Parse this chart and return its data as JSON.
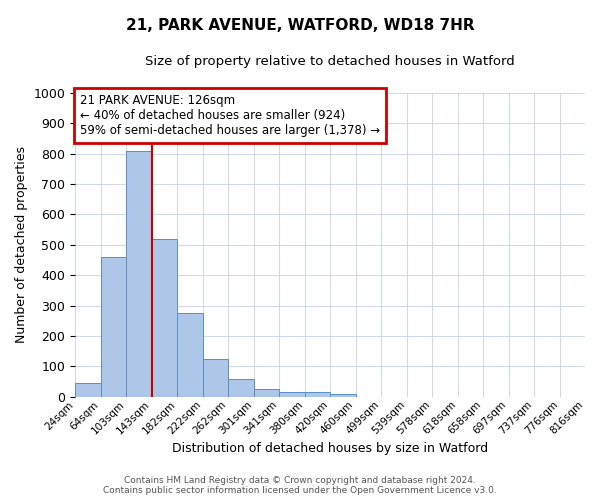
{
  "title": "21, PARK AVENUE, WATFORD, WD18 7HR",
  "subtitle": "Size of property relative to detached houses in Watford",
  "xlabel": "Distribution of detached houses by size in Watford",
  "ylabel": "Number of detached properties",
  "bar_values": [
    46,
    460,
    810,
    520,
    275,
    125,
    60,
    25,
    15,
    15,
    10,
    0,
    0,
    0,
    0,
    0,
    0,
    0,
    0,
    0
  ],
  "bar_labels": [
    "24sqm",
    "64sqm",
    "103sqm",
    "143sqm",
    "182sqm",
    "222sqm",
    "262sqm",
    "301sqm",
    "341sqm",
    "380sqm",
    "420sqm",
    "460sqm",
    "499sqm",
    "539sqm",
    "578sqm",
    "618sqm",
    "658sqm",
    "697sqm",
    "737sqm",
    "776sqm",
    "816sqm"
  ],
  "bar_color": "#aec6e8",
  "bar_edge_color": "#5a8fc4",
  "vline_color": "#cc0000",
  "annotation_text": "21 PARK AVENUE: 126sqm\n← 40% of detached houses are smaller (924)\n59% of semi-detached houses are larger (1,378) →",
  "annotation_box_color": "#cc0000",
  "annotation_text_color": "#000000",
  "ylim": [
    0,
    1000
  ],
  "yticks": [
    0,
    100,
    200,
    300,
    400,
    500,
    600,
    700,
    800,
    900,
    1000
  ],
  "footer_line1": "Contains HM Land Registry data © Crown copyright and database right 2024.",
  "footer_line2": "Contains public sector information licensed under the Open Government Licence v3.0.",
  "background_color": "#ffffff",
  "grid_color": "#d0d8e8"
}
